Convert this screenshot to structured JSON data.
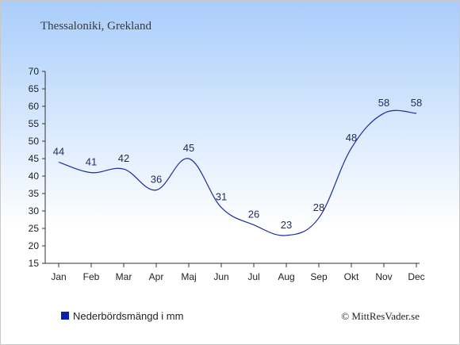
{
  "chart_data": {
    "type": "line",
    "title": "Thessaloniki, Grekland",
    "categories": [
      "Jan",
      "Feb",
      "Mar",
      "Apr",
      "Maj",
      "Jun",
      "Jul",
      "Aug",
      "Sep",
      "Okt",
      "Nov",
      "Dec"
    ],
    "series": [
      {
        "name": "Nederbördsmängd i mm",
        "values": [
          44,
          41,
          42,
          36,
          45,
          31,
          26,
          23,
          28,
          48,
          58,
          58
        ]
      }
    ],
    "yticks": [
      15,
      20,
      25,
      30,
      35,
      40,
      45,
      50,
      55,
      60,
      65,
      70
    ],
    "ylim": [
      15,
      70
    ],
    "grid": false,
    "legend_position": "bottom-left",
    "colors": {
      "line": "#1a2d9e",
      "legend_marker": "#0a1fa8",
      "background_top": "#a9cdfb",
      "background_bottom": "#ffffff"
    }
  },
  "credit": "© MittResVader.se"
}
